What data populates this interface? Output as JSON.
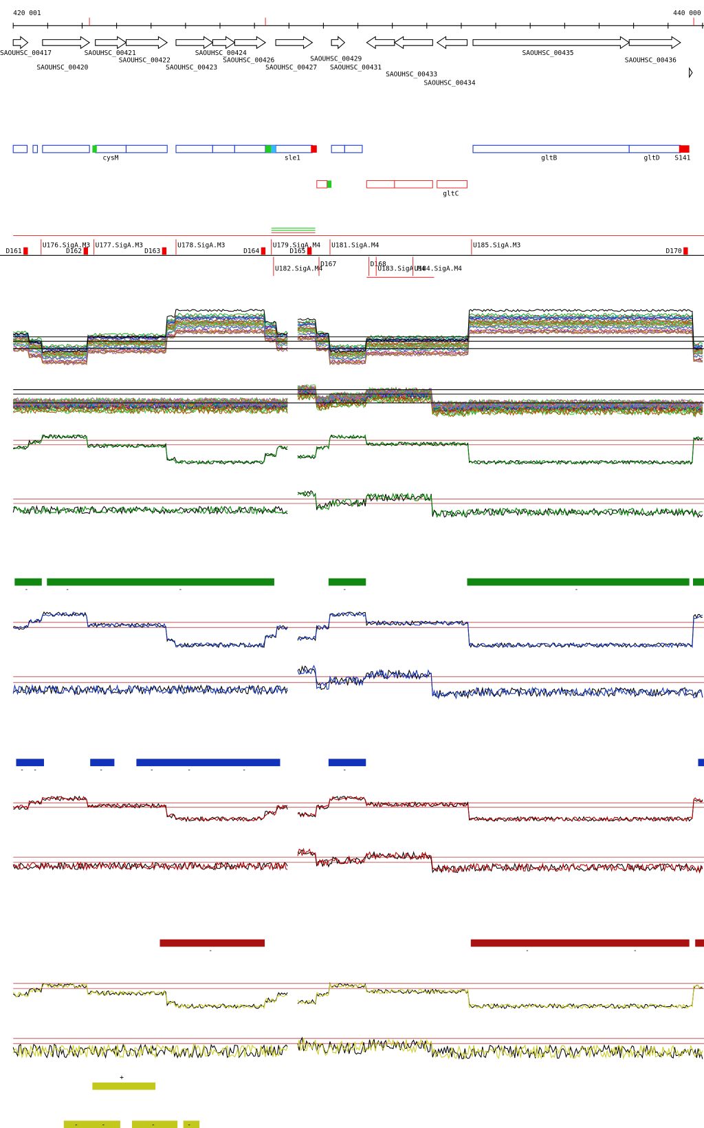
{
  "ruler": {
    "start_label": "420 001",
    "end_label": "440 000"
  },
  "genes": [
    "SAOUHSC_00417",
    "SAOUHSC_00420",
    "SAOUHSC_00421",
    "SAOUHSC_00422",
    "SAOUHSC_00423",
    "SAOUHSC_00424",
    "SAOUHSC_00426",
    "SAOUHSC_00427",
    "SAOUHSC_00429",
    "SAOUHSC_00431",
    "SAOUHSC_00433",
    "SAOUHSC_00434",
    "SAOUHSC_00435",
    "SAOUHSC_00436"
  ],
  "annotations": [
    "cysM",
    "sle1",
    "gltB",
    "gltD",
    "S141",
    "gltC"
  ],
  "promoters": [
    "D161",
    "U176.SigA.M3",
    "D162",
    "U177.SigA.M3",
    "D163",
    "U178.SigA.M3",
    "D164",
    "U179.SigA.M4",
    "D165",
    "U181.SigA.M4",
    "U185.SigA.M3",
    "D170",
    "U182.SigA.M4",
    "D167",
    "D168",
    "U183.SigA.M4",
    "U184.SigA.M4"
  ],
  "strand_marks": [
    "-",
    "-",
    "-",
    "-",
    "-",
    "-",
    "-",
    "-",
    "-",
    "-",
    "-",
    "-",
    "-",
    "-",
    "-",
    "+",
    "-",
    "-",
    "-",
    "-"
  ]
}
